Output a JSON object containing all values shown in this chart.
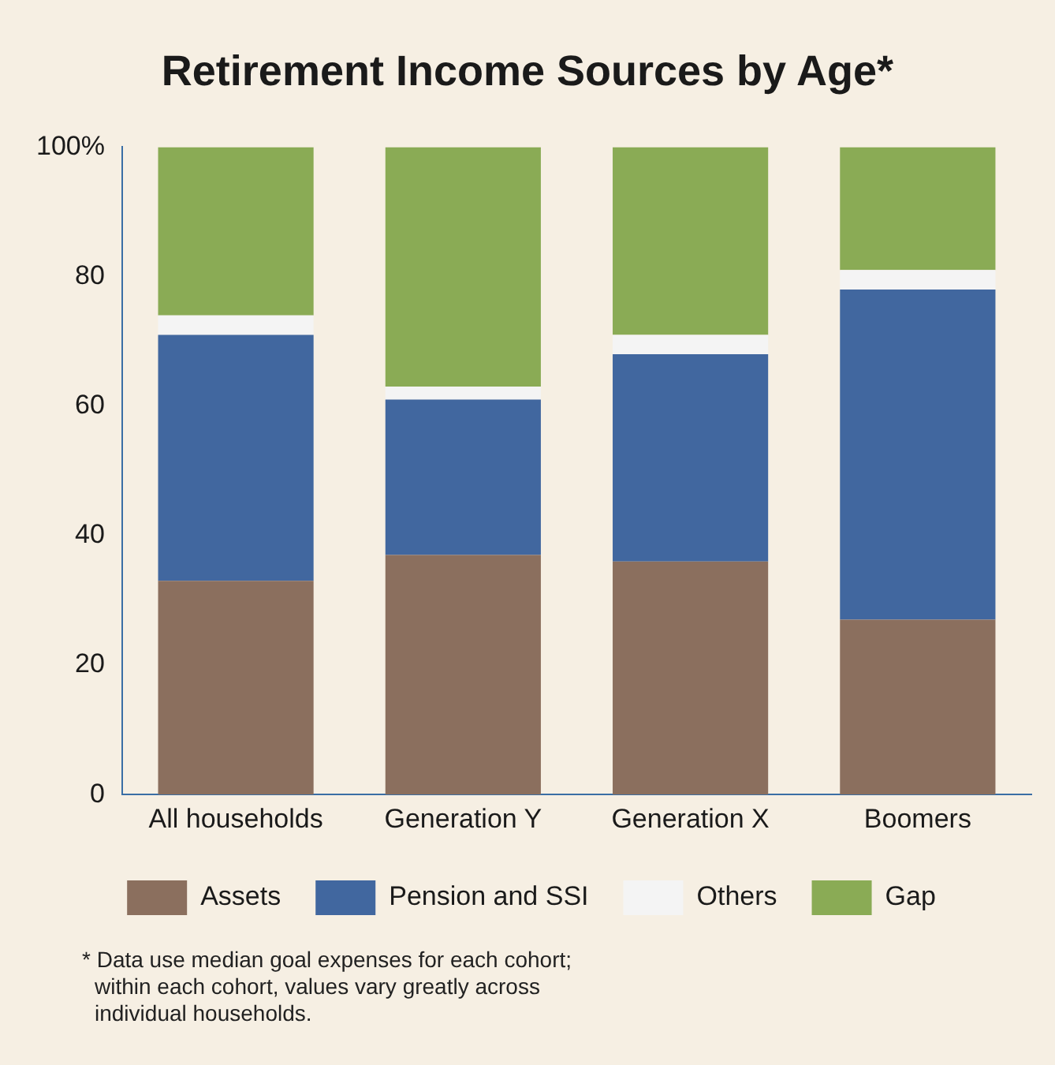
{
  "chart_data": {
    "type": "bar",
    "title": "Retirement Income Sources by Age*",
    "categories": [
      "All households",
      "Generation Y",
      "Generation X",
      "Boomers"
    ],
    "stacked": true,
    "series": [
      {
        "name": "Assets",
        "color": "#8b6f5e",
        "values": [
          33,
          37,
          36,
          27
        ]
      },
      {
        "name": "Pension and SSI",
        "color": "#41679f",
        "values": [
          38,
          24,
          32,
          51
        ]
      },
      {
        "name": "Others",
        "color": "#f4f4f4",
        "values": [
          3,
          2,
          3,
          3
        ]
      },
      {
        "name": "Gap",
        "color": "#8aab55",
        "values": [
          26,
          37,
          29,
          19
        ]
      }
    ],
    "ylim": [
      0,
      100
    ],
    "yticks": [
      0,
      20,
      40,
      60,
      {
        "value": 100,
        "label": "100%"
      },
      80
    ],
    "grid": false,
    "legend": "bottom",
    "annotations": [
      "* Data use median goal expenses for each cohort; within each cohort, values vary greatly across individual households."
    ]
  }
}
